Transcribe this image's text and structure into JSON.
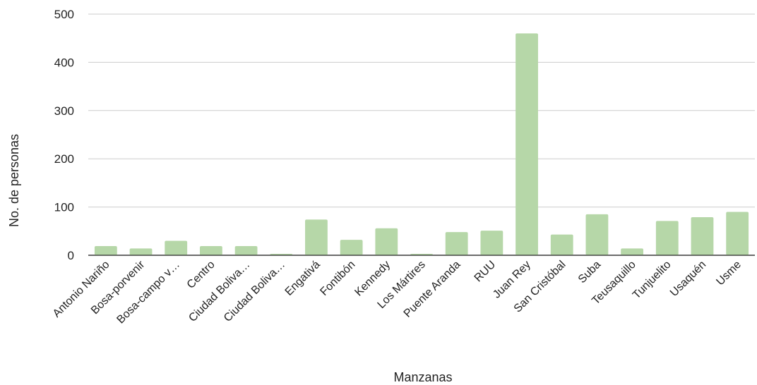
{
  "chart_data": {
    "type": "bar",
    "title": "",
    "xlabel": "Manzanas",
    "ylabel": "No. de personas",
    "ylim": [
      0,
      500
    ],
    "yticks": [
      0,
      100,
      200,
      300,
      400,
      500
    ],
    "grid": true,
    "legend": "none",
    "bar_color": "#b6d7a8",
    "categories": [
      "Antonio Nariño",
      "Bosa-porvenir",
      "Bosa-campo v…",
      "Centro",
      "Ciudad Boliva…",
      "Ciudad Boliva…",
      "Engativá",
      "Fontibón",
      "Kennedy",
      "Los Mártires",
      "Puente Aranda",
      "RUU",
      "Juan Rey",
      "San Cristóbal",
      "Suba",
      "Teusaquillo",
      "Tunjuelito",
      "Usaquén",
      "Usme"
    ],
    "values": [
      19,
      14,
      30,
      19,
      19,
      3,
      74,
      32,
      56,
      3,
      48,
      51,
      460,
      43,
      85,
      14,
      71,
      79,
      90
    ]
  }
}
